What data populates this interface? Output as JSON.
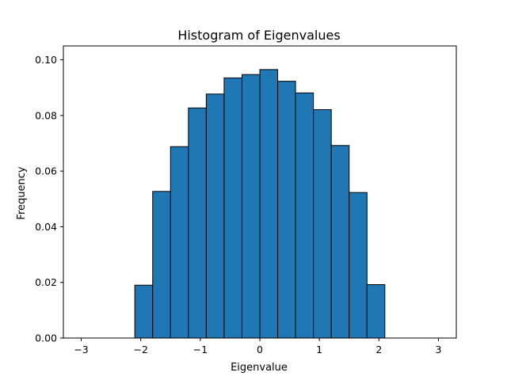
{
  "chart_data": {
    "type": "bar",
    "title": "Histogram of Eigenvalues",
    "xlabel": "Eigenvalue",
    "ylabel": "Frequency",
    "xlim": [
      -3.3,
      3.3
    ],
    "ylim": [
      0.0,
      0.105
    ],
    "grid": false,
    "legend": "none",
    "x_ticks": [
      -3,
      -2,
      -1,
      0,
      1,
      2,
      3
    ],
    "x_tick_labels": [
      "−3",
      "−2",
      "−1",
      "0",
      "1",
      "2",
      "3"
    ],
    "y_ticks": [
      0.0,
      0.02,
      0.04,
      0.06,
      0.08,
      0.1
    ],
    "y_tick_labels": [
      "0.00",
      "0.02",
      "0.04",
      "0.06",
      "0.08",
      "0.10"
    ],
    "bin_edges": [
      -3.0,
      -2.7,
      -2.4,
      -2.1,
      -1.8,
      -1.5,
      -1.2,
      -0.9,
      -0.6,
      -0.3,
      0.0,
      0.3,
      0.6,
      0.9,
      1.2,
      1.5,
      1.8,
      2.1,
      2.4,
      2.7,
      3.0
    ],
    "values": [
      0.0,
      0.0,
      0.0,
      0.019,
      0.0527,
      0.0688,
      0.0827,
      0.0877,
      0.0935,
      0.0947,
      0.0965,
      0.0923,
      0.0881,
      0.0821,
      0.0692,
      0.0523,
      0.0192,
      0.0,
      0.0,
      0.0
    ],
    "bar_color": "#1f77b4",
    "edge_color": "#000000"
  }
}
